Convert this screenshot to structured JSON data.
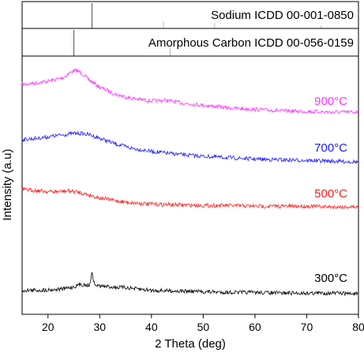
{
  "chart_data": {
    "type": "line",
    "xlabel": "2 Theta (deg)",
    "ylabel": "Intensity (a.u)",
    "xlim": [
      15,
      80
    ],
    "x_ticks": [
      20,
      30,
      40,
      50,
      60,
      70,
      80
    ],
    "y_ticks_shown": false,
    "grid": false,
    "reference_panels": [
      {
        "label": "Sodium ICDD 00-001-0850",
        "peaks": [
          28.5,
          42.3,
          52.2,
          72.8
        ],
        "intensities": [
          1.0,
          0.28,
          0.22,
          0.12
        ]
      },
      {
        "label": "Amorphous Carbon ICDD 00-056-0159",
        "peaks": [
          25.0,
          43.6
        ],
        "intensities": [
          1.0,
          0.3
        ]
      }
    ],
    "series": [
      {
        "name": "900°C",
        "color": "#ff33ff",
        "x": [
          15,
          18,
          21,
          23,
          24.5,
          25.5,
          26.5,
          28,
          30,
          33,
          36,
          40,
          43,
          46,
          50,
          55,
          60,
          65,
          70,
          75,
          80
        ],
        "y": [
          0.8,
          0.82,
          0.86,
          0.9,
          0.98,
          1.0,
          0.96,
          0.86,
          0.76,
          0.66,
          0.6,
          0.56,
          0.57,
          0.53,
          0.5,
          0.46,
          0.44,
          0.42,
          0.41,
          0.4,
          0.4
        ]
      },
      {
        "name": "700°C",
        "color": "#1a1aff",
        "x": [
          15,
          18,
          21,
          23,
          25,
          26.5,
          28,
          30,
          33,
          36,
          40,
          45,
          50,
          55,
          60,
          65,
          70,
          75,
          80
        ],
        "y": [
          0.66,
          0.68,
          0.71,
          0.73,
          0.75,
          0.75,
          0.73,
          0.68,
          0.6,
          0.54,
          0.49,
          0.45,
          0.42,
          0.4,
          0.38,
          0.37,
          0.36,
          0.35,
          0.34
        ]
      },
      {
        "name": "500°C",
        "color": "#ff1a1a",
        "x": [
          15,
          17,
          20,
          22,
          24,
          26,
          28,
          30,
          33,
          36,
          40,
          45,
          50,
          55,
          60,
          65,
          70,
          75,
          80
        ],
        "y": [
          0.5,
          0.49,
          0.47,
          0.47,
          0.48,
          0.46,
          0.42,
          0.38,
          0.34,
          0.31,
          0.29,
          0.28,
          0.27,
          0.27,
          0.26,
          0.26,
          0.26,
          0.25,
          0.25
        ]
      },
      {
        "name": "300°C",
        "color": "#000000",
        "x": [
          15,
          18,
          21,
          23,
          25,
          26,
          27,
          28,
          28.5,
          29,
          30,
          32,
          34,
          35,
          37,
          40,
          45,
          50,
          55,
          60,
          65,
          70,
          75,
          80
        ],
        "y": [
          0.2,
          0.2,
          0.21,
          0.22,
          0.25,
          0.28,
          0.28,
          0.27,
          0.45,
          0.28,
          0.26,
          0.25,
          0.24,
          0.24,
          0.22,
          0.2,
          0.19,
          0.18,
          0.17,
          0.17,
          0.16,
          0.16,
          0.16,
          0.15
        ]
      }
    ]
  }
}
